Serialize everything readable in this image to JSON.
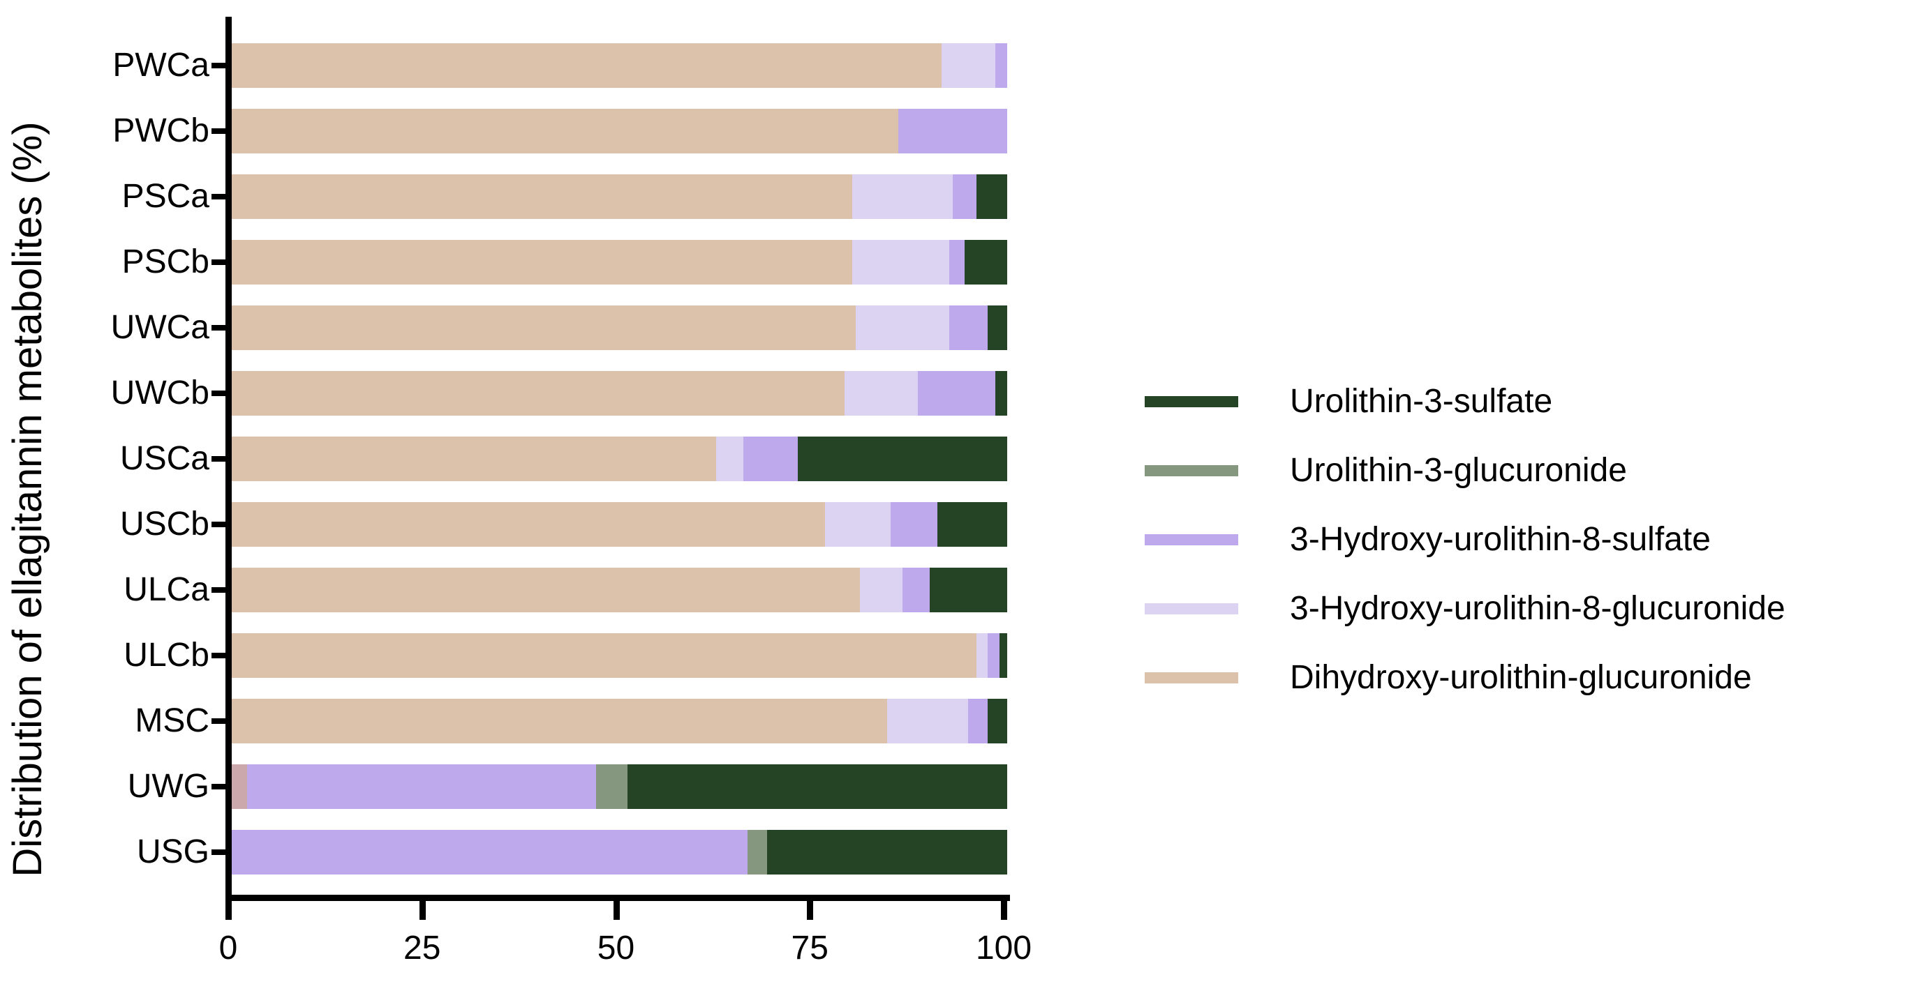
{
  "chart_data": {
    "type": "bar",
    "variant": "horizontal-stacked",
    "title": "",
    "xlabel": "",
    "ylabel": "Distribution of ellagitannin metabolites (%)",
    "xlim": [
      0,
      100
    ],
    "xticks": [
      "0",
      "25",
      "50",
      "75",
      "100"
    ],
    "xtick_values": [
      0,
      25,
      50,
      75,
      100
    ],
    "grid": "off",
    "legend_position": "right",
    "categories": [
      "PWCa",
      "PWCb",
      "PSCa",
      "PSCb",
      "UWCa",
      "UWCb",
      "USCa",
      "USCb",
      "ULCa",
      "ULCb",
      "MSC",
      "UWG",
      "USG"
    ],
    "series": [
      {
        "name": "Dihydroxy-urolithin-glucuronide",
        "color": "#dcc1ab",
        "values": [
          91.5,
          86,
          80,
          80,
          80.5,
          79,
          62.5,
          76.5,
          81,
          96,
          84.5,
          2,
          0
        ]
      },
      {
        "name": "3-Hydroxy-urolithin-8-glucuronide",
        "color": "#dcd3f2",
        "values": [
          7,
          0,
          13,
          12.5,
          12,
          9.5,
          3.5,
          8.5,
          5.5,
          1.5,
          10.5,
          0,
          0
        ]
      },
      {
        "name": "3-Hydroxy-urolithin-8-sulfate",
        "color": "#bea9ed",
        "values": [
          1.5,
          14,
          3,
          2,
          5,
          10,
          7,
          6,
          3.5,
          1.5,
          2.5,
          45,
          66.5
        ]
      },
      {
        "name": "Urolithin-3-glucuronide",
        "color": "#85987f",
        "values": [
          0,
          0,
          0,
          0,
          0,
          0,
          0,
          0,
          0,
          0,
          0,
          4,
          2.5
        ]
      },
      {
        "name": "Urolithin-3-sulfate",
        "color": "#254426",
        "values": [
          0,
          0,
          4,
          5.5,
          2.5,
          1.5,
          27,
          9,
          10,
          1,
          2.5,
          49,
          31
        ]
      }
    ],
    "legend_order": [
      "Urolithin-3-sulfate",
      "Urolithin-3-glucuronide",
      "3-Hydroxy-urolithin-8-sulfate",
      "3-Hydroxy-urolithin-8-glucuronide",
      "Dihydroxy-urolithin-glucuronide"
    ],
    "segment_color_overrides": {
      "UWG": {
        "Dihydroxy-urolithin-glucuronide": "#cba8ac"
      }
    },
    "axis_color": "#000000",
    "text_color": "#000000"
  }
}
